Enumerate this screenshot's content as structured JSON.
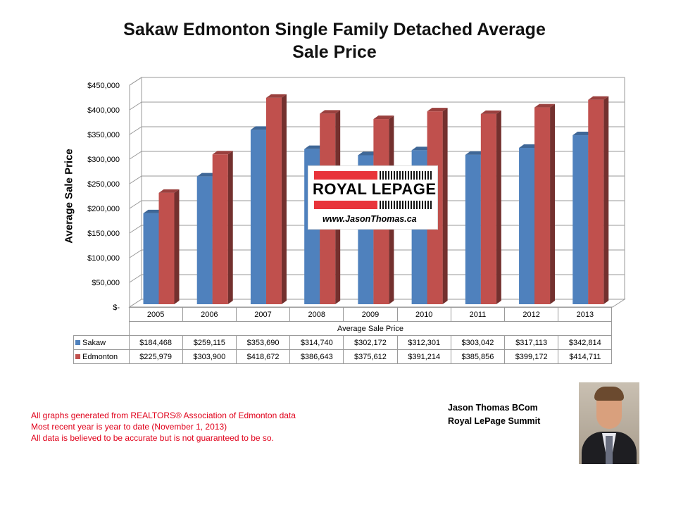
{
  "chart_data": {
    "type": "bar",
    "title": "Sakaw Edmonton Single Family Detached Average Sale Price",
    "title_lines": [
      "Sakaw Edmonton Single Family Detached Average",
      "Sale Price"
    ],
    "xlabel": "Average Sale Price",
    "ylabel": "Average Sale Price",
    "ylim": [
      0,
      450000
    ],
    "yticks": [
      0,
      50000,
      100000,
      150000,
      200000,
      250000,
      300000,
      350000,
      400000,
      450000
    ],
    "ytick_labels": [
      "$-",
      "$50,000",
      "$100,000",
      "$150,000",
      "$200,000",
      "$250,000",
      "$300,000",
      "$350,000",
      "$400,000",
      "$450,000"
    ],
    "categories": [
      "2005",
      "2006",
      "2007",
      "2008",
      "2009",
      "2010",
      "2011",
      "2012",
      "2013"
    ],
    "series": [
      {
        "name": "Sakaw",
        "color": "#4f81bd",
        "values": [
          184468,
          259115,
          353690,
          314740,
          302172,
          312301,
          303042,
          317113,
          342814
        ],
        "labels": [
          "$184,468",
          "$259,115",
          "$353,690",
          "$314,740",
          "$302,172",
          "$312,301",
          "$303,042",
          "$317,113",
          "$342,814"
        ]
      },
      {
        "name": "Edmonton",
        "color": "#c0504d",
        "values": [
          225979,
          303900,
          418672,
          386643,
          375612,
          391214,
          385856,
          399172,
          414711
        ],
        "labels": [
          "$225,979",
          "$303,900",
          "$418,672",
          "$386,643",
          "$375,612",
          "$391,214",
          "$385,856",
          "$399,172",
          "$414,711"
        ]
      }
    ],
    "grid": true,
    "legend": "data-table"
  },
  "logo": {
    "brand": "ROYAL LEPAGE",
    "url": "www.JasonThomas.ca"
  },
  "notes": [
    "All graphs generated from REALTORS® Association of Edmonton data",
    "Most recent year is year to date (November 1, 2013)",
    "All data is believed to be accurate but is not guaranteed to be so."
  ],
  "agent": {
    "name": "Jason Thomas BCom",
    "company": "Royal LePage Summit"
  }
}
